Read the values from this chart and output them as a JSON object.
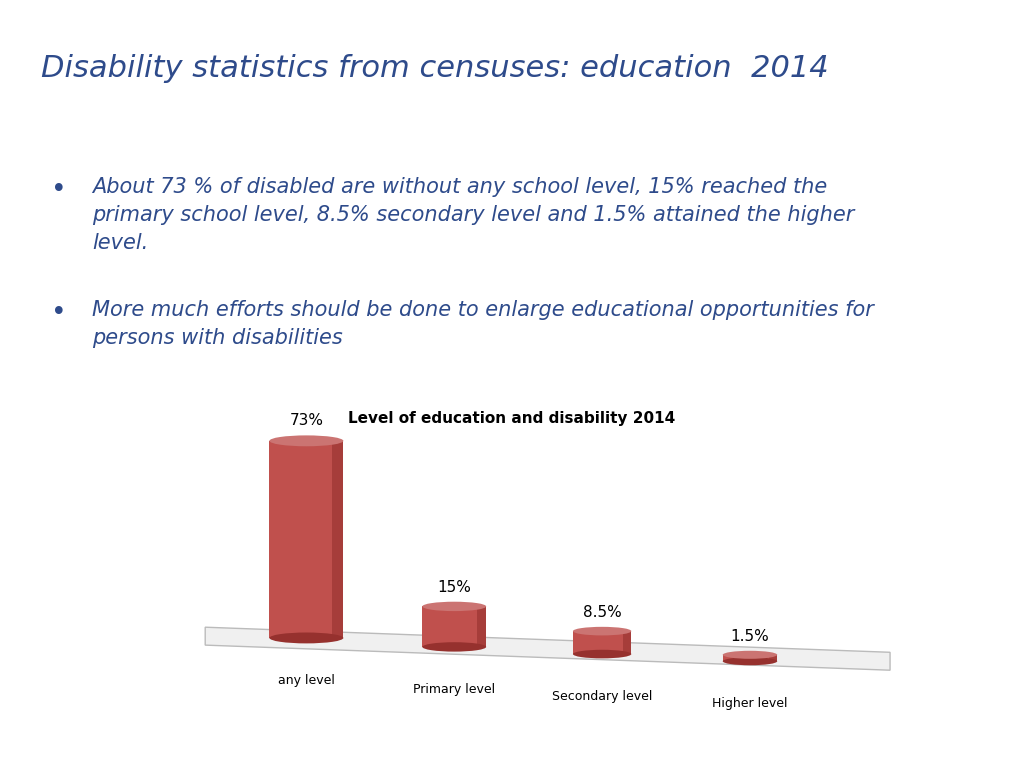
{
  "title": "Disability statistics from censuses: education  2014",
  "title_color": "#2E4B8B",
  "title_fontsize": 22,
  "chart_title": "Level of education and disability 2014",
  "chart_title_fontsize": 11,
  "bullet_points": [
    "About 73 % of disabled are without any school level, 15% reached the\nprimary school level, 8.5% secondary level and 1.5% attained the higher\nlevel.",
    "More much efforts should be done to enlarge educational opportunities for\npersons with disabilities"
  ],
  "bullet_color": "#2E4B8B",
  "bullet_fontsize": 15,
  "categories": [
    "any level",
    "Primary level",
    "Secondary level",
    "Higher level"
  ],
  "values": [
    73,
    15,
    8.5,
    1.5
  ],
  "labels": [
    "73%",
    "15%",
    "8.5%",
    "1.5%"
  ],
  "bar_color_body": "#C0504D",
  "bar_color_dark": "#96312E",
  "bar_color_top": "#CB7472",
  "floor_color": "#F0F0F0",
  "floor_edge_color": "#BBBBBB",
  "background_color": "#FFFFFF"
}
